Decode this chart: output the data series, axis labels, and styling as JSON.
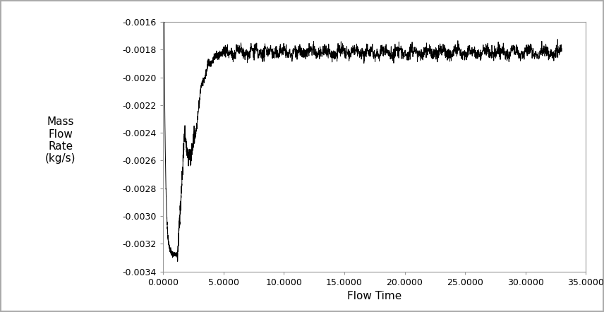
{
  "title": "",
  "xlabel": "Flow Time",
  "ylabel": "Mass\nFlow\nRate\n(kg/s)",
  "xlim": [
    0.0,
    35.0
  ],
  "ylim": [
    -0.0034,
    -0.0016
  ],
  "xticks": [
    0.0,
    5.0,
    10.0,
    15.0,
    20.0,
    25.0,
    30.0,
    35.0
  ],
  "xtick_labels": [
    "0.0000",
    "5.0000",
    "10.0000",
    "15.0000",
    "20.0000",
    "25.0000",
    "30.0000",
    "35.0000"
  ],
  "yticks": [
    -0.0034,
    -0.0032,
    -0.003,
    -0.0028,
    -0.0026,
    -0.0024,
    -0.0022,
    -0.002,
    -0.0018,
    -0.0016
  ],
  "ytick_labels": [
    "-0.0034",
    "-0.0032",
    "-0.0030",
    "-0.0028",
    "-0.0026",
    "-0.0024",
    "-0.0022",
    "-0.0020",
    "-0.0018",
    "-0.0016"
  ],
  "line_color": "#000000",
  "background_color": "#ffffff",
  "steady_value": -0.00182,
  "noise_amplitude_steady": 2.2e-05,
  "font_size_label": 11,
  "font_size_tick": 9,
  "border_color": "#aaaaaa"
}
